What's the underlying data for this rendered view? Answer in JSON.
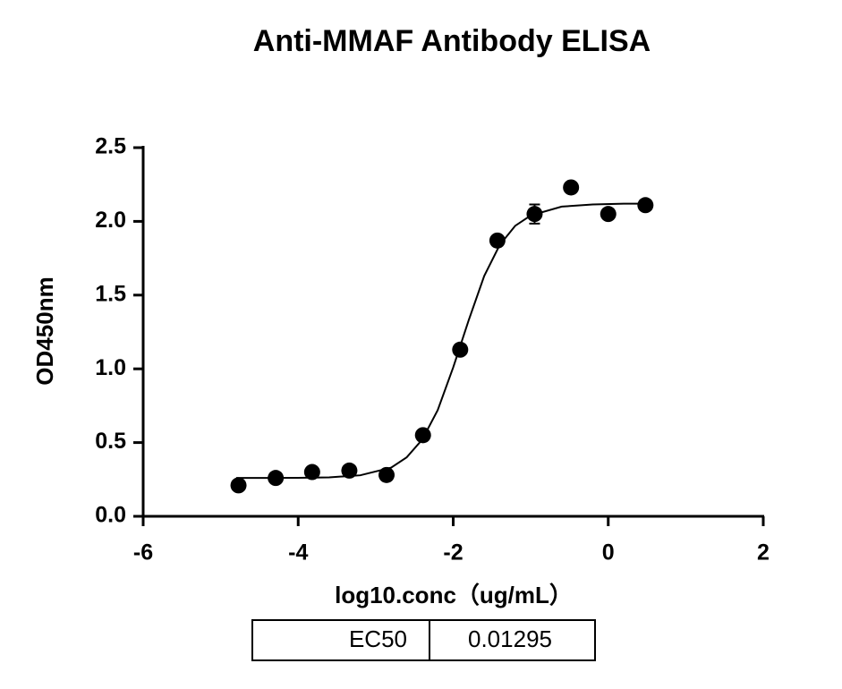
{
  "chart_data": {
    "type": "scatter",
    "title": "Anti-MMAF Antibody ELISA",
    "xlabel": "log10.conc（ug/mL）",
    "ylabel": "OD450nm",
    "xlim": [
      -6,
      2
    ],
    "ylim": [
      0,
      2.5
    ],
    "xticks": [
      -6,
      -4,
      -2,
      0,
      2
    ],
    "yticks": [
      {
        "value": 0,
        "label": "0.0"
      },
      0.5,
      {
        "value": 1,
        "label": "1.0"
      },
      1.5,
      {
        "value": 2,
        "label": "2.0"
      },
      2.5
    ],
    "series": [
      {
        "style": "points",
        "color": "#000000",
        "x": [
          -4.77,
          -4.29,
          -3.82,
          -3.34,
          -2.86,
          -2.39,
          -1.91,
          -1.43,
          -0.95,
          -0.48,
          0,
          0.48
        ],
        "values": [
          0.21,
          0.26,
          0.3,
          0.31,
          0.28,
          0.55,
          1.13,
          1.87,
          2.05,
          2.23,
          2.05,
          2.11
        ],
        "errors": [
          null,
          null,
          null,
          null,
          null,
          null,
          null,
          null,
          0.065,
          null,
          null,
          null
        ]
      },
      {
        "style": "line",
        "color": "#000000",
        "x": [
          -4.8,
          -4.4,
          -4.0,
          -3.6,
          -3.2,
          -2.8,
          -2.6,
          -2.4,
          -2.2,
          -2.0,
          -1.8,
          -1.6,
          -1.4,
          -1.2,
          -1.0,
          -0.6,
          -0.2,
          0.2,
          0.5
        ],
        "values": [
          0.26,
          0.26,
          0.261,
          0.264,
          0.278,
          0.33,
          0.4,
          0.52,
          0.72,
          1.01,
          1.33,
          1.63,
          1.84,
          1.97,
          2.04,
          2.1,
          2.115,
          2.12,
          2.12
        ]
      }
    ],
    "table": {
      "label": "EC50",
      "value": "0.01295"
    }
  }
}
